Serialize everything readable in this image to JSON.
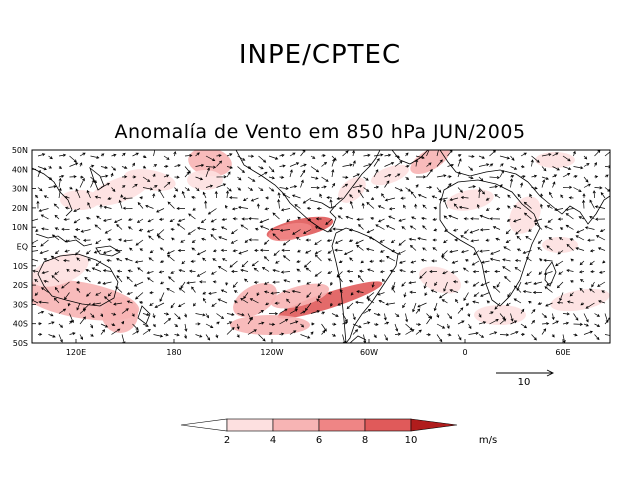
{
  "header": {
    "org_title": "INPE/CPTEC",
    "map_title": "Anomalía de Vento em 850 hPa JUN/2005"
  },
  "axes": {
    "lat_labels": [
      "50N",
      "40N",
      "30N",
      "20N",
      "10N",
      "EQ",
      "10S",
      "20S",
      "30S",
      "40S",
      "50S"
    ],
    "lon_labels": [
      "120E",
      "180",
      "120W",
      "60W",
      "0",
      "60E"
    ]
  },
  "reference_vector": {
    "value": "10"
  },
  "colorbar": {
    "levels": [
      "2",
      "4",
      "6",
      "8",
      "10"
    ],
    "units": "m/s",
    "colors": [
      "#ffffff",
      "#fde0e0",
      "#f7b4b4",
      "#ef8585",
      "#e05a5a",
      "#c93636",
      "#b01c1c"
    ]
  },
  "colors": {
    "coast": "#000000",
    "arrow": "#000000"
  }
}
